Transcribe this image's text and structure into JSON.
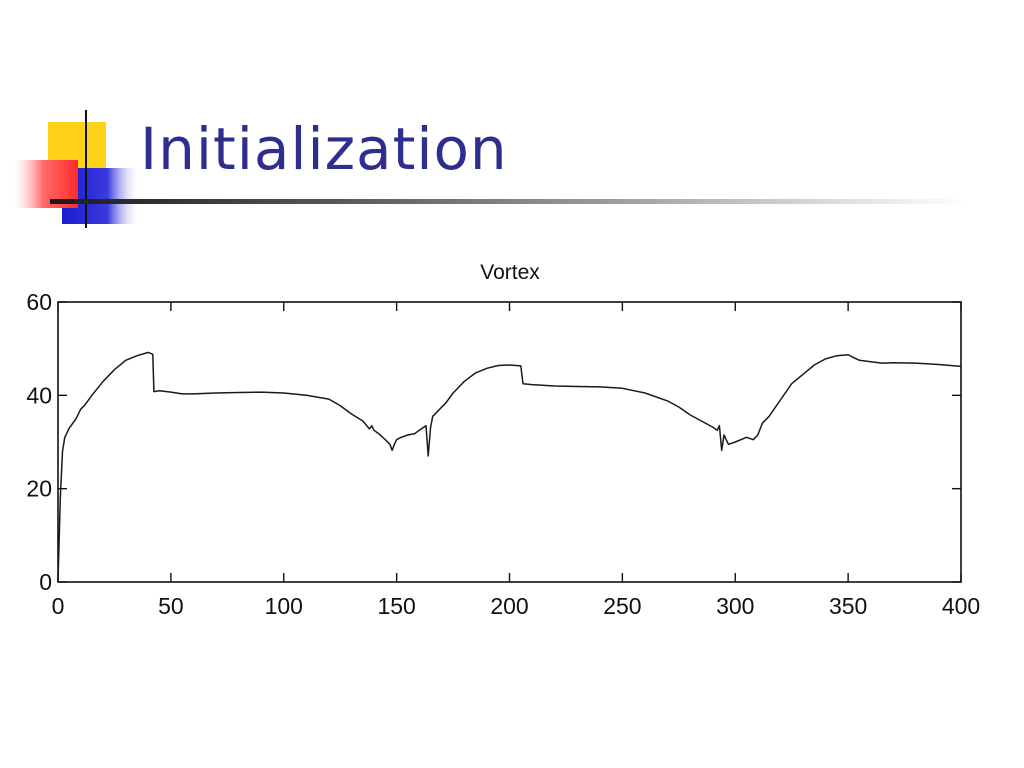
{
  "slide": {
    "title": "Initialization"
  },
  "colors": {
    "title": "#2e2e8f",
    "deco_yellow": "#ffd21a",
    "deco_blue": "#2b2bd6",
    "deco_red": "#ff3b3b",
    "line": "#1a1a1a"
  },
  "chart_data": {
    "type": "line",
    "title": "Vortex",
    "xlabel": "",
    "ylabel": "",
    "xlim": [
      0,
      400
    ],
    "ylim": [
      0,
      60
    ],
    "xticks": [
      0,
      50,
      100,
      150,
      200,
      250,
      300,
      350,
      400
    ],
    "yticks": [
      0,
      20,
      40,
      60
    ],
    "grid": false,
    "series": [
      {
        "x": [
          0,
          1,
          2,
          3,
          5,
          8,
          10,
          12,
          15,
          20,
          25,
          30,
          35,
          40,
          42,
          42.5,
          45,
          50,
          55,
          60,
          70,
          80,
          90,
          100,
          110,
          120,
          125,
          130,
          135,
          138,
          139,
          140,
          142,
          145,
          147,
          148,
          149,
          150,
          152,
          155,
          158,
          160,
          163,
          164,
          165,
          166,
          168,
          170,
          172,
          175,
          180,
          185,
          190,
          195,
          200,
          205,
          206,
          210,
          220,
          230,
          240,
          250,
          260,
          270,
          275,
          280,
          285,
          290,
          292,
          293,
          294,
          295,
          296,
          297,
          300,
          305,
          308,
          310,
          312,
          315,
          320,
          325,
          330,
          335,
          340,
          345,
          350,
          352,
          355,
          360,
          365,
          370,
          380,
          390,
          400
        ],
        "y": [
          0,
          18,
          28,
          31,
          33,
          35,
          37,
          38,
          40,
          43,
          45.5,
          47.5,
          48.5,
          49.2,
          48.8,
          40.8,
          41.0,
          40.7,
          40.3,
          40.3,
          40.5,
          40.6,
          40.7,
          40.5,
          40.0,
          39.2,
          37.8,
          36.0,
          34.5,
          32.8,
          33.5,
          32.5,
          31.8,
          30.5,
          29.5,
          28.2,
          29.5,
          30.5,
          31.0,
          31.5,
          31.8,
          32.5,
          33.5,
          27.0,
          33.0,
          35.5,
          36.5,
          37.5,
          38.5,
          40.5,
          43.0,
          44.8,
          45.8,
          46.4,
          46.5,
          46.3,
          42.5,
          42.3,
          42.0,
          41.9,
          41.8,
          41.5,
          40.5,
          38.8,
          37.5,
          35.8,
          34.5,
          33.2,
          32.5,
          33.5,
          28.2,
          31.5,
          30.5,
          29.5,
          30.0,
          31.0,
          30.5,
          31.5,
          34.0,
          35.5,
          39.0,
          42.5,
          44.5,
          46.5,
          47.8,
          48.5,
          48.7,
          48.2,
          47.5,
          47.2,
          46.9,
          47.0,
          46.9,
          46.6,
          46.2
        ]
      }
    ]
  }
}
